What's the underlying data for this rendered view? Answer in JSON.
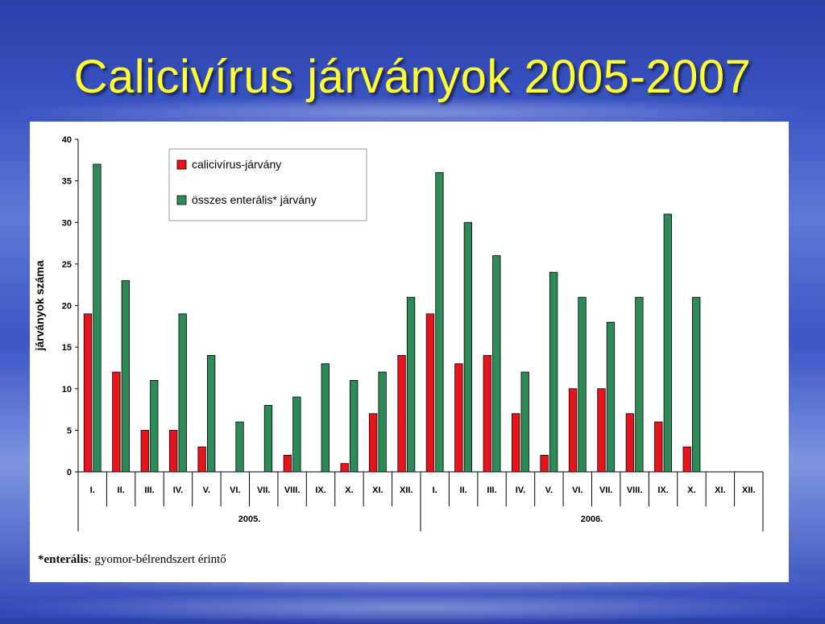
{
  "slide": {
    "title": "Calicivírus járványok 2005-2007",
    "footnote_bold": "*enterális",
    "footnote_rest": ": gyomor-bélrendszert érintő"
  },
  "colors": {
    "calici": "#e8131b",
    "enteral": "#2e8b57",
    "title": "#ffff33"
  },
  "chart_data": {
    "type": "bar",
    "ylabel": "járványok száma",
    "ylim": [
      0,
      40
    ],
    "yticks": [
      0,
      5,
      10,
      15,
      20,
      25,
      30,
      35,
      40
    ],
    "grid": false,
    "legend_position": "top-left",
    "categories": [
      "I.",
      "II.",
      "III.",
      "IV.",
      "V.",
      "VI.",
      "VII.",
      "VIII.",
      "IX.",
      "X.",
      "XI.",
      "XII.",
      "I.",
      "II.",
      "III.",
      "IV.",
      "V.",
      "VI.",
      "VII.",
      "VIII.",
      "IX.",
      "X.",
      "XI.",
      "XII."
    ],
    "groups": [
      {
        "label": "2005.",
        "count": 12
      },
      {
        "label": "2006.",
        "count": 12
      }
    ],
    "series": [
      {
        "name": "calicivírus-járvány",
        "color": "#e8131b",
        "values": [
          19,
          12,
          5,
          5,
          3,
          0,
          0,
          2,
          0,
          1,
          7,
          14,
          19,
          13,
          14,
          7,
          2,
          10,
          10,
          7,
          6,
          3,
          null,
          null
        ]
      },
      {
        "name": "összes enterális* járvány",
        "color": "#2e8b57",
        "values": [
          37,
          23,
          11,
          19,
          14,
          6,
          8,
          9,
          13,
          11,
          12,
          21,
          36,
          30,
          26,
          12,
          24,
          21,
          18,
          21,
          31,
          21,
          null,
          null
        ]
      }
    ]
  }
}
